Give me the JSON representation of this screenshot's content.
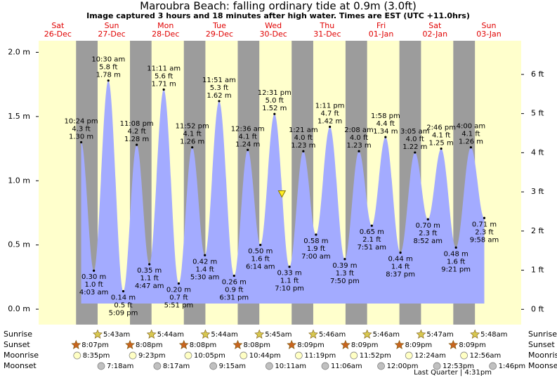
{
  "chart_data": {
    "type": "area",
    "title": "Maroubra Beach: falling  ordinary tide at 0.9m (3.0ft)",
    "subtitle": "Image captured 3 hours and 18 minutes after high water. Times are EST (UTC +11.0hrs)",
    "days": [
      "Sat",
      "Sun",
      "Mon",
      "Tue",
      "Wed",
      "Thu",
      "Fri",
      "Sat",
      "Sun"
    ],
    "dates": [
      "26-Dec",
      "27-Dec",
      "28-Dec",
      "29-Dec",
      "30-Dec",
      "31-Dec",
      "01-Jan",
      "02-Jan",
      "03-Jan"
    ],
    "ylim": [
      -0.12,
      2.09
    ],
    "yticks": [
      {
        "value": 0,
        "label": "0.0 m"
      },
      {
        "value": 0.5,
        "label": "0.5 m"
      },
      {
        "value": 1,
        "label": "1.0 m"
      },
      {
        "value": 1.5,
        "label": "1.5 m"
      },
      {
        "value": 2,
        "label": "2.0 m"
      }
    ],
    "y2lim": [
      -0.39,
      6.86
    ],
    "y2ticks": [
      {
        "value": 0,
        "label": "0 ft"
      },
      {
        "value": 1,
        "label": "1 ft"
      },
      {
        "value": 2,
        "label": "2 ft"
      },
      {
        "value": 3,
        "label": "3 ft"
      },
      {
        "value": 4,
        "label": "4 ft"
      },
      {
        "value": 5,
        "label": "5 ft"
      },
      {
        "value": 6,
        "label": "6 ft"
      }
    ],
    "color": "#a3abff",
    "day_color": "#ffffcc",
    "night_color": "#9c9c9c",
    "tide": {
      "x": [
        "26-Dec 22:24",
        "27-Dec 04:03",
        "27-Dec 10:30",
        "27-Dec 17:09",
        "27-Dec 23:08",
        "28-Dec 04:47",
        "28-Dec 11:11",
        "28-Dec 17:51",
        "28-Dec 23:52",
        "29-Dec 05:30",
        "29-Dec 11:51",
        "29-Dec 18:31",
        "30-Dec 00:36",
        "30-Dec 06:14",
        "30-Dec 12:31",
        "30-Dec 19:10",
        "31-Dec 01:21",
        "31-Dec 07:00",
        "31-Dec 13:11",
        "31-Dec 19:50",
        "01-Jan 02:08",
        "01-Jan 07:51",
        "01-Jan 13:58",
        "01-Jan 20:37",
        "02-Jan 03:05",
        "02-Jan 08:52",
        "02-Jan 14:46",
        "02-Jan 21:21",
        "03-Jan 04:00",
        "03-Jan 09:58"
      ],
      "values": [
        1.3,
        0.3,
        1.78,
        0.14,
        1.28,
        0.35,
        1.71,
        0.2,
        1.26,
        0.42,
        1.62,
        0.26,
        1.24,
        0.5,
        1.52,
        0.33,
        1.23,
        0.58,
        1.42,
        0.39,
        1.23,
        0.65,
        1.34,
        0.44,
        1.22,
        0.7,
        1.25,
        0.48,
        1.26,
        0.71
      ],
      "value_labels": [
        "1.30 m",
        "0.30 m",
        "1.78 m",
        "0.14 m",
        "1.28 m",
        "0.35 m",
        "1.71 m",
        "0.20 m",
        "1.26 m",
        "0.42 m",
        "1.62 m",
        "0.26 m",
        "1.24 m",
        "0.50 m",
        "1.52 m",
        "0.33 m",
        "1.23 m",
        "0.58 m",
        "1.42 m",
        "0.39 m",
        "1.23 m",
        "0.65 m",
        "1.34 m",
        "0.44 m",
        "1.22 m",
        "0.70 m",
        "1.25 m",
        "0.48 m",
        "1.26 m",
        "0.71 m"
      ],
      "ft_labels": [
        "4.3 ft",
        "1.0 ft",
        "5.8 ft",
        "0.5 ft",
        "4.2 ft",
        "1.1 ft",
        "5.6 ft",
        "0.7 ft",
        "4.1 ft",
        "1.4 ft",
        "5.3 ft",
        "0.9 ft",
        "4.1 ft",
        "1.6 ft",
        "5.0 ft",
        "1.1 ft",
        "4.0 ft",
        "1.9 ft",
        "4.7 ft",
        "1.3 ft",
        "4.0 ft",
        "2.1 ft",
        "4.4 ft",
        "1.4 ft",
        "4.0 ft",
        "2.3 ft",
        "4.1 ft",
        "1.6 ft",
        "4.1 ft",
        "2.3 ft"
      ],
      "time_labels": [
        "10:24 pm",
        "4:03 am",
        "10:30 am",
        "5:09 pm",
        "11:08 pm",
        "4:47 am",
        "11:11 am",
        "5:51 pm",
        "11:52 pm",
        "5:30 am",
        "11:51 am",
        "6:31 pm",
        "12:36 am",
        "6:14 am",
        "12:31 pm",
        "7:10 pm",
        "1:21 am",
        "7:00 am",
        "1:11 pm",
        "7:50 pm",
        "2:08 am",
        "7:51 am",
        "1:58 pm",
        "8:37 pm",
        "3:05 am",
        "8:52 am",
        "2:46 pm",
        "9:21 pm",
        "4:00 am",
        "9:58 am"
      ]
    },
    "current": {
      "x": "30-Dec 15:49",
      "value": 0.9
    },
    "sun_moon": [
      {
        "name": "Sunrise",
        "color": "#d8c850",
        "x": [
          "27-Dec 05:43",
          "28-Dec 05:44",
          "29-Dec 05:44",
          "30-Dec 05:45",
          "31-Dec 05:46",
          "01-Jan 05:46",
          "02-Jan 05:47",
          "03-Jan 05:48"
        ],
        "labels": [
          "5:43am",
          "5:44am",
          "5:44am",
          "5:45am",
          "5:46am",
          "5:46am",
          "5:47am",
          "5:48am"
        ]
      },
      {
        "name": "Sunset",
        "color": "#c8641e",
        "x": [
          "26-Dec 20:07",
          "27-Dec 20:08",
          "28-Dec 20:08",
          "29-Dec 20:08",
          "30-Dec 20:09",
          "31-Dec 20:09",
          "01-Jan 20:09",
          "02-Jan 20:09"
        ],
        "labels": [
          "8:07pm",
          "8:08pm",
          "8:08pm",
          "8:08pm",
          "8:09pm",
          "8:09pm",
          "8:09pm",
          "8:09pm"
        ]
      },
      {
        "name": "Moonrise",
        "color": "#ffffc4",
        "x": [
          "26-Dec 20:35",
          "27-Dec 21:23",
          "28-Dec 22:05",
          "29-Dec 22:44",
          "30-Dec 23:19",
          "31-Dec 23:52",
          "02-Jan 00:24",
          "03-Jan 00:56"
        ],
        "labels": [
          "8:35pm",
          "9:23pm",
          "10:05pm",
          "10:44pm",
          "11:19pm",
          "11:52pm",
          "12:24am",
          "12:56am"
        ]
      },
      {
        "name": "Moonset",
        "color": "#c0c0c0",
        "x": [
          "27-Dec 07:18",
          "28-Dec 08:17",
          "29-Dec 09:15",
          "30-Dec 10:11",
          "31-Dec 11:06",
          "01-Jan 12:00",
          "02-Jan 12:53",
          "03-Jan 13:46"
        ],
        "labels": [
          "7:18am",
          "8:17am",
          "9:15am",
          "10:11am",
          "11:06am",
          "12:00pm",
          "12:53pm",
          "1:46pm"
        ]
      }
    ],
    "annotation": "Last Quarter | 4:31pm"
  }
}
